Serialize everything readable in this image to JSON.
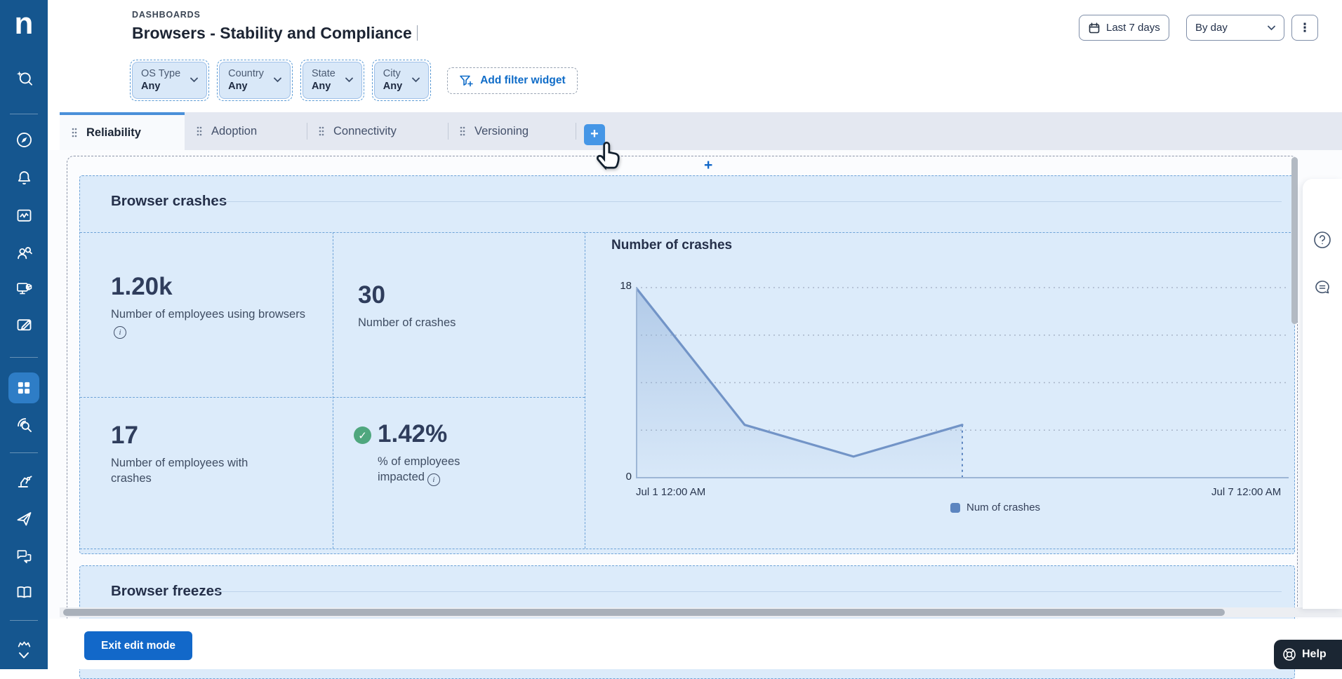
{
  "app": {
    "logo_letter": "n"
  },
  "sidebar": {
    "items": [
      "ai-search",
      "compass",
      "notifications",
      "monitor-metrics",
      "people-insights",
      "device-actions",
      "content-edit",
      "dashboards",
      "diagnostics-search",
      "automation",
      "launch",
      "feedback-chats",
      "library",
      "account"
    ],
    "active_item": "dashboards"
  },
  "header": {
    "eyebrow": "DASHBOARDS",
    "title": "Browsers - Stability and Compliance",
    "time_range_label": "Last 7 days",
    "granularity_value": "By day"
  },
  "filters": {
    "widgets": [
      {
        "label": "OS Type",
        "value": "Any"
      },
      {
        "label": "Country",
        "value": "Any"
      },
      {
        "label": "State",
        "value": "Any"
      },
      {
        "label": "City",
        "value": "Any"
      }
    ],
    "add_button_label": "Add filter widget"
  },
  "tabs": {
    "items": [
      {
        "label": "Reliability",
        "active": true
      },
      {
        "label": "Adoption",
        "active": false
      },
      {
        "label": "Connectivity",
        "active": false
      },
      {
        "label": "Versioning",
        "active": false
      }
    ],
    "add_tab": "+"
  },
  "dashboard": {
    "add_row_glyph": "+",
    "sections": [
      {
        "title": "Browser crashes",
        "kpis": [
          {
            "value": "1.20k",
            "label": "Number of employees using browsers",
            "has_info": true
          },
          {
            "value": "30",
            "label": "Number of crashes",
            "has_info": false
          },
          {
            "value": "17",
            "label": "Number of employees with crashes",
            "has_info": false
          },
          {
            "value": "1.42%",
            "label": "% of employees impacted",
            "has_info": true,
            "status": "success"
          }
        ]
      },
      {
        "title": "Browser freezes"
      }
    ]
  },
  "chart_data": {
    "type": "line",
    "title": "Number of crashes",
    "x": [
      "Jul 1",
      "Jul 2",
      "Jul 3",
      "Jul 4"
    ],
    "values": [
      18,
      5,
      2,
      5
    ],
    "x_axis_start_label": "Jul 1 12:00 AM",
    "x_axis_end_label": "Jul 7 12:00 AM",
    "x_axis_total_intervals": 6,
    "ylim": [
      0,
      18
    ],
    "yticks": [
      0,
      18
    ],
    "gridline_values": [
      4.5,
      9,
      13.5,
      18
    ],
    "grid": "dotted-horizontal",
    "legend": [
      {
        "label": "Num of crashes",
        "color": "#5c85c0"
      }
    ],
    "legend_position": "bottom-center",
    "line_color": "#7294c7",
    "area_fill": true,
    "last_point_dotted_drop_line": true
  },
  "footer": {
    "exit_edit_label": "Exit edit mode"
  },
  "help": {
    "label": "Help"
  },
  "colors": {
    "sidebar": "#15568f",
    "sidebar_active": "#2e7dc6",
    "accent_blue": "#1268c9",
    "widget_bg": "#dcebfa",
    "widget_dash": "#6ea3d8",
    "tabbar_bg": "#e4e8f1",
    "active_tab_border": "#4a90d9",
    "success_green": "#4fa77e"
  }
}
